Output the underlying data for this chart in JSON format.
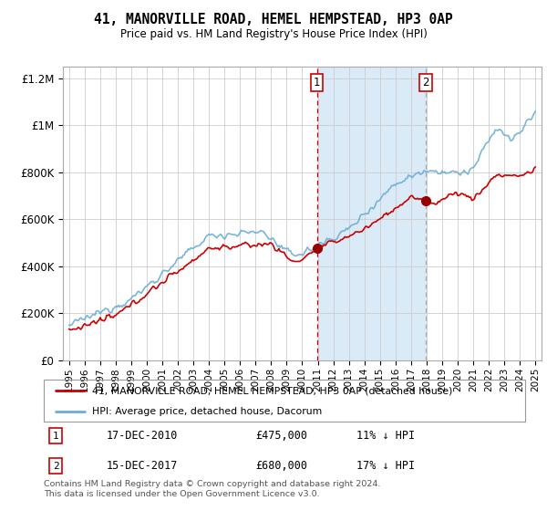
{
  "title": "41, MANORVILLE ROAD, HEMEL HEMPSTEAD, HP3 0AP",
  "subtitle": "Price paid vs. HM Land Registry's House Price Index (HPI)",
  "hpi_color": "#6baed6",
  "price_color": "#cc0000",
  "shaded_color": "#daeaf7",
  "marker_color": "#990000",
  "sale1_vline_color": "#cc0000",
  "sale2_vline_color": "#aaaaaa",
  "annotation_box_color": "#cc0000",
  "ylim": [
    0,
    1250000
  ],
  "yticks": [
    0,
    200000,
    400000,
    600000,
    800000,
    1000000,
    1200000
  ],
  "ytick_labels": [
    "£0",
    "£200K",
    "£400K",
    "£600K",
    "£800K",
    "£1M",
    "£1.2M"
  ],
  "sale1_date": 2010.95,
  "sale1_price": 475000,
  "sale2_date": 2017.95,
  "sale2_price": 680000,
  "legend1_text": "41, MANORVILLE ROAD, HEMEL HEMPSTEAD, HP3 0AP (detached house)",
  "legend2_text": "HPI: Average price, detached house, Dacorum",
  "table_row1": [
    "1",
    "17-DEC-2010",
    "£475,000",
    "11% ↓ HPI"
  ],
  "table_row2": [
    "2",
    "15-DEC-2017",
    "£680,000",
    "17% ↓ HPI"
  ],
  "footer": "Contains HM Land Registry data © Crown copyright and database right 2024.\nThis data is licensed under the Open Government Licence v3.0.",
  "xstart": 1995,
  "xend": 2025
}
